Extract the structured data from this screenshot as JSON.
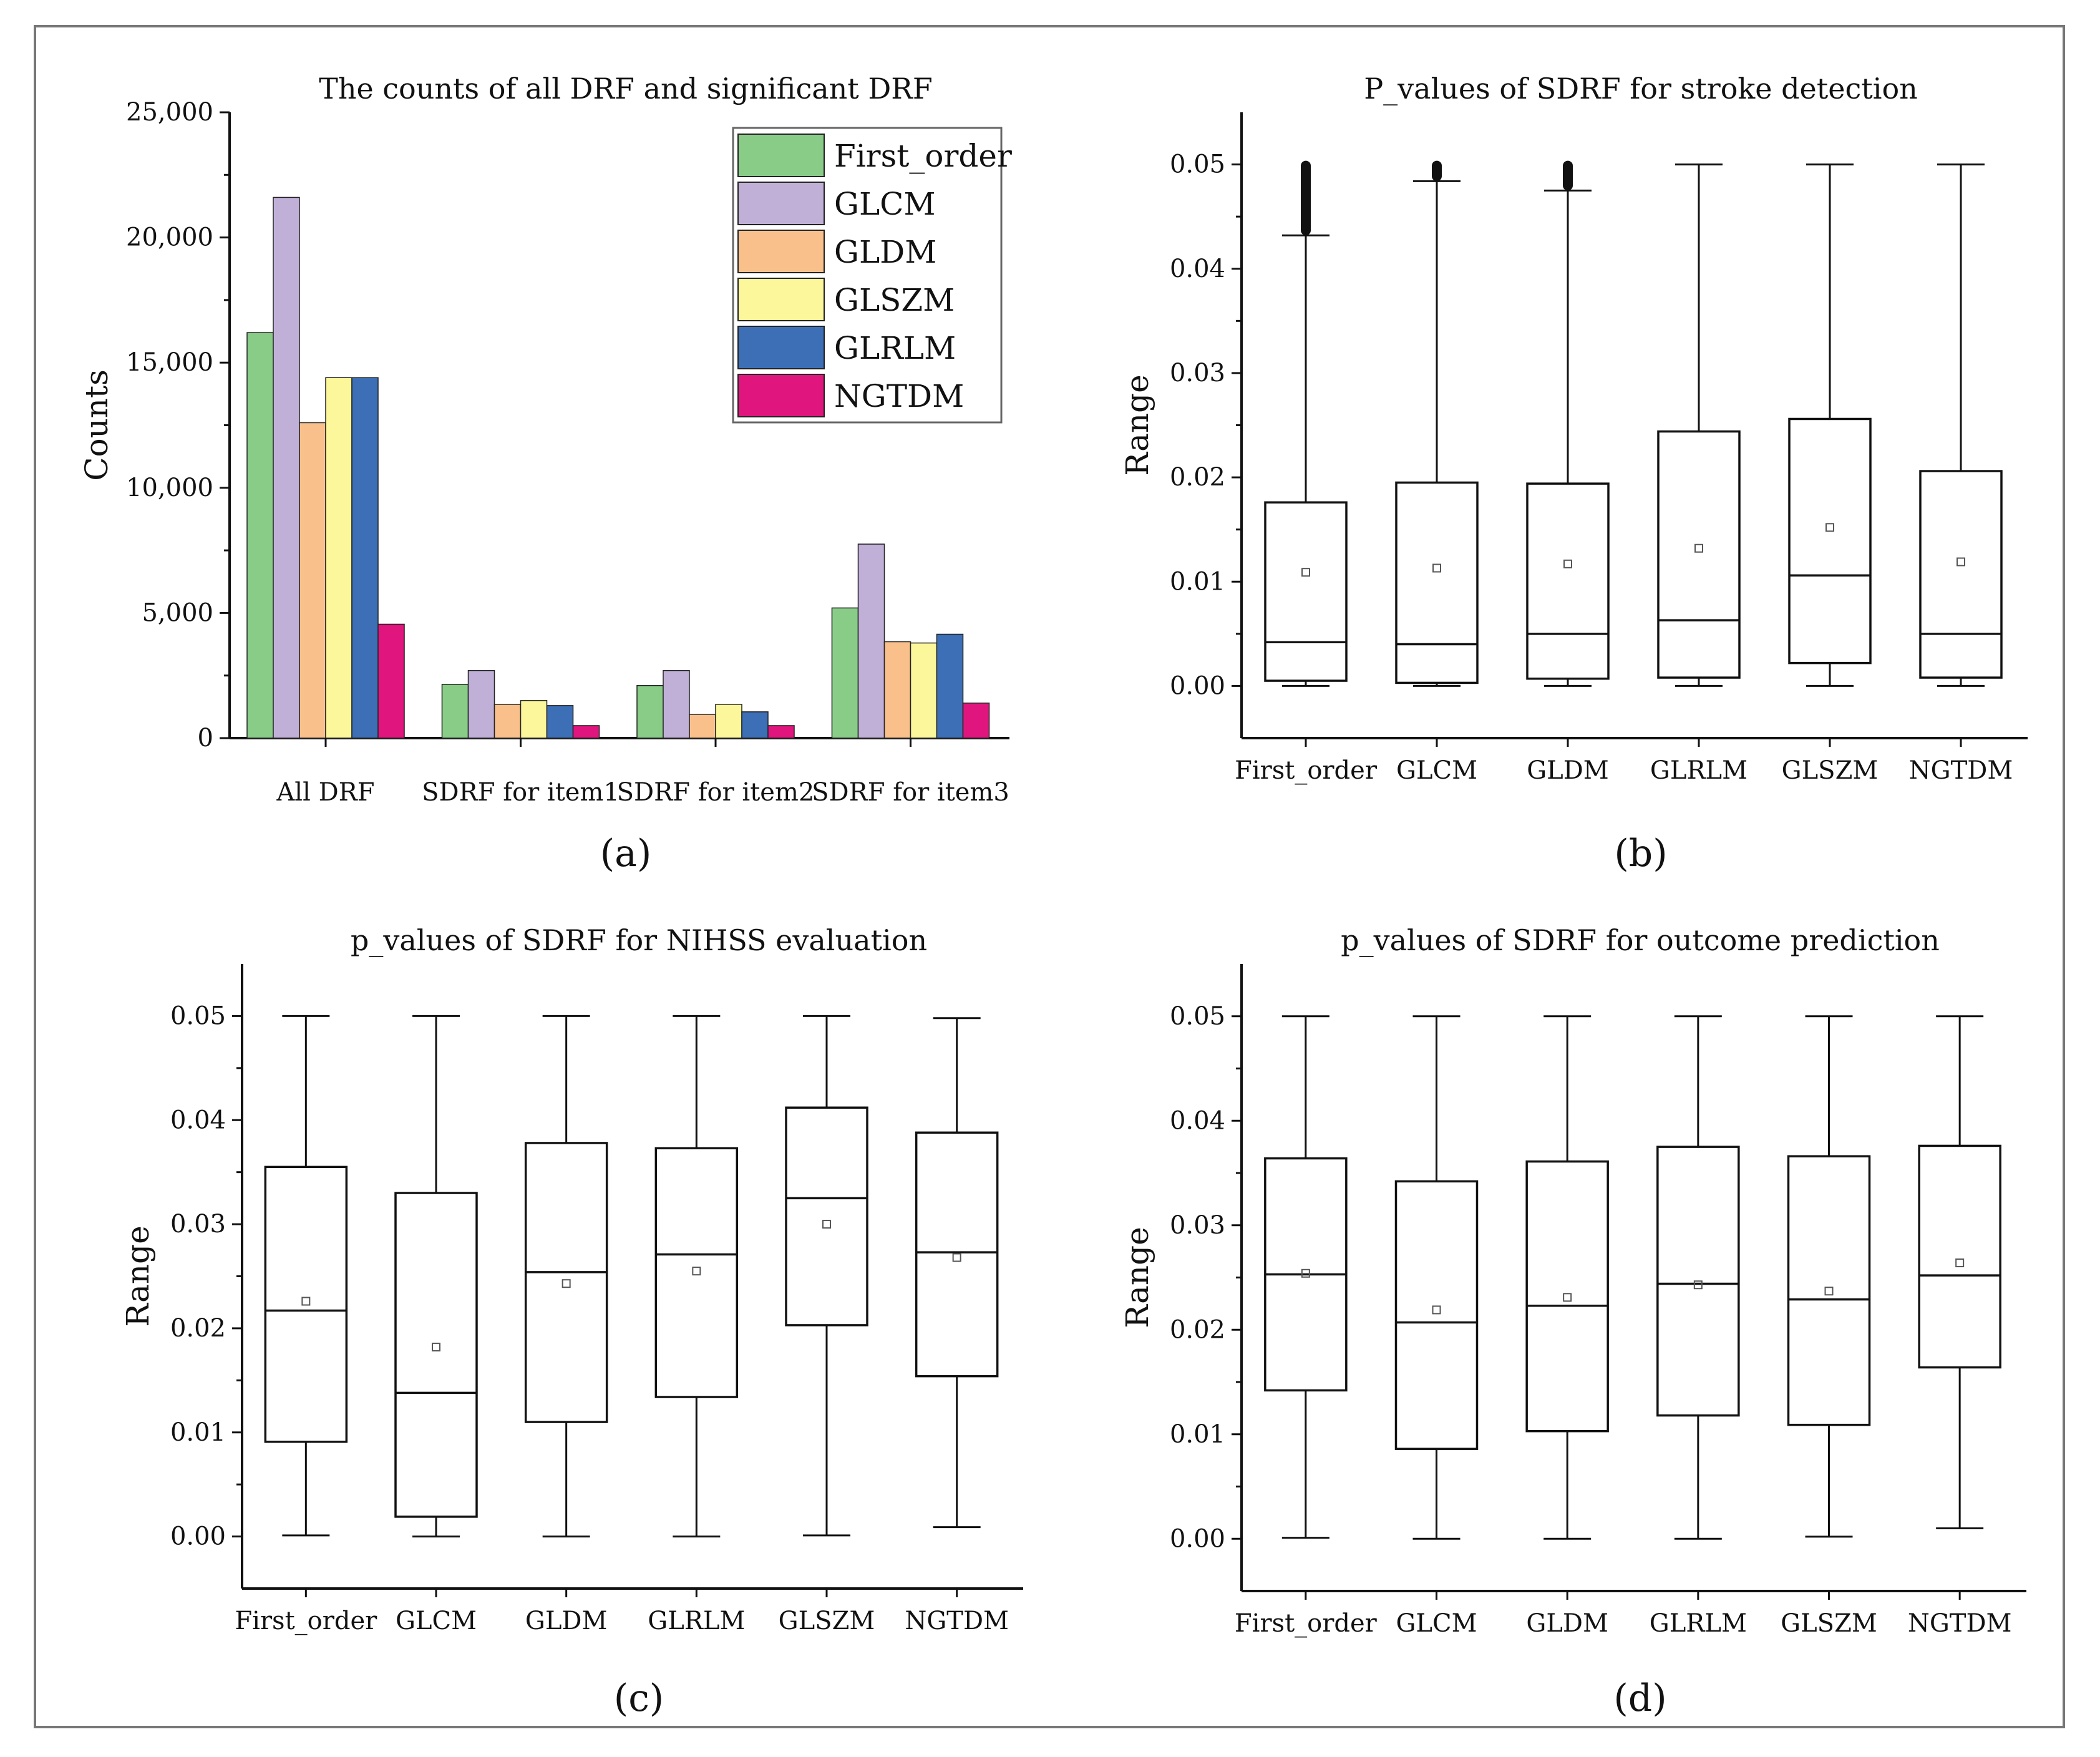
{
  "chart_data": [
    {
      "id": "a",
      "type": "bar",
      "panel_label": "(a)",
      "title": "The counts of all DRF and significant DRF",
      "xlabel": "",
      "ylabel": "Counts",
      "ylim": [
        0,
        25000
      ],
      "yticks": [
        0,
        5000,
        10000,
        15000,
        20000,
        25000
      ],
      "ytick_labels": [
        "0",
        "5,000",
        "10,000",
        "15,000",
        "20,000",
        "25,000"
      ],
      "categories": [
        "All DRF",
        "SDRF for item1",
        "SDRF for item2",
        "SDRF for item3"
      ],
      "legend_position": "top-right",
      "series": [
        {
          "name": "First_order",
          "color": "#88cc88",
          "values": [
            16200,
            2150,
            2100,
            5200
          ]
        },
        {
          "name": "GLCM",
          "color": "#c0b0d8",
          "values": [
            21600,
            2700,
            2700,
            7750
          ]
        },
        {
          "name": "GLDM",
          "color": "#f9c08c",
          "values": [
            12600,
            1350,
            950,
            3850
          ]
        },
        {
          "name": "GLSZM",
          "color": "#fbf79a",
          "values": [
            14400,
            1500,
            1350,
            3800
          ]
        },
        {
          "name": "GLRLM",
          "color": "#3d6fb6",
          "values": [
            14400,
            1300,
            1050,
            4150
          ]
        },
        {
          "name": "NGTDM",
          "color": "#e0157e",
          "values": [
            4550,
            500,
            500,
            1400
          ]
        }
      ]
    },
    {
      "id": "b",
      "type": "box",
      "panel_label": "(b)",
      "title": "P_values of SDRF for stroke detection",
      "xlabel": "",
      "ylabel": "Range",
      "ylim": [
        -0.005,
        0.055
      ],
      "yticks": [
        0,
        0.01,
        0.02,
        0.03,
        0.04,
        0.05
      ],
      "ytick_labels": [
        "0.00",
        "0.01",
        "0.02",
        "0.03",
        "0.04",
        "0.05"
      ],
      "categories": [
        "First_order",
        "GLCM",
        "GLDM",
        "GLRLM",
        "GLSZM",
        "NGTDM"
      ],
      "boxes": [
        {
          "min": 0.0,
          "q1": 0.0005,
          "median": 0.0042,
          "q3": 0.0176,
          "max": 0.0432,
          "mean": 0.0109,
          "outliers_range": [
            0.0432,
            0.05
          ]
        },
        {
          "min": 0.0,
          "q1": 0.0003,
          "median": 0.004,
          "q3": 0.0195,
          "max": 0.0484,
          "mean": 0.0113,
          "outliers_range": [
            0.0484,
            0.05
          ]
        },
        {
          "min": 0.0,
          "q1": 0.0007,
          "median": 0.005,
          "q3": 0.0194,
          "max": 0.0475,
          "mean": 0.0117,
          "outliers_range": [
            0.0475,
            0.05
          ]
        },
        {
          "min": 0.0,
          "q1": 0.0008,
          "median": 0.0063,
          "q3": 0.0244,
          "max": 0.05,
          "mean": 0.0132,
          "outliers_range": null
        },
        {
          "min": 0.0,
          "q1": 0.0022,
          "median": 0.0106,
          "q3": 0.0256,
          "max": 0.05,
          "mean": 0.0152,
          "outliers_range": null
        },
        {
          "min": 0.0,
          "q1": 0.0008,
          "median": 0.005,
          "q3": 0.0206,
          "max": 0.05,
          "mean": 0.0119,
          "outliers_range": null
        }
      ]
    },
    {
      "id": "c",
      "type": "box",
      "panel_label": "(c)",
      "title": "p_values of SDRF for NIHSS evaluation",
      "xlabel": "",
      "ylabel": "Range",
      "ylim": [
        -0.005,
        0.055
      ],
      "yticks": [
        0,
        0.01,
        0.02,
        0.03,
        0.04,
        0.05
      ],
      "ytick_labels": [
        "0.00",
        "0.01",
        "0.02",
        "0.03",
        "0.04",
        "0.05"
      ],
      "categories": [
        "First_order",
        "GLCM",
        "GLDM",
        "GLRLM",
        "GLSZM",
        "NGTDM"
      ],
      "boxes": [
        {
          "min": 0.0001,
          "q1": 0.0091,
          "median": 0.0217,
          "q3": 0.0355,
          "max": 0.05,
          "mean": 0.0226,
          "outliers_range": null
        },
        {
          "min": 0.0,
          "q1": 0.0019,
          "median": 0.0138,
          "q3": 0.033,
          "max": 0.05,
          "mean": 0.0182,
          "outliers_range": null
        },
        {
          "min": 0.0,
          "q1": 0.011,
          "median": 0.0254,
          "q3": 0.0378,
          "max": 0.05,
          "mean": 0.0243,
          "outliers_range": null
        },
        {
          "min": 0.0,
          "q1": 0.0134,
          "median": 0.0271,
          "q3": 0.0373,
          "max": 0.05,
          "mean": 0.0255,
          "outliers_range": null
        },
        {
          "min": 0.0001,
          "q1": 0.0203,
          "median": 0.0325,
          "q3": 0.0412,
          "max": 0.05,
          "mean": 0.03,
          "outliers_range": null
        },
        {
          "min": 0.0009,
          "q1": 0.0154,
          "median": 0.0273,
          "q3": 0.0388,
          "max": 0.0498,
          "mean": 0.0268,
          "outliers_range": null
        }
      ]
    },
    {
      "id": "d",
      "type": "box",
      "panel_label": "(d)",
      "title": "p_values of SDRF for outcome prediction",
      "xlabel": "",
      "ylabel": "Range",
      "ylim": [
        -0.005,
        0.055
      ],
      "yticks": [
        0,
        0.01,
        0.02,
        0.03,
        0.04,
        0.05
      ],
      "ytick_labels": [
        "0.00",
        "0.01",
        "0.02",
        "0.03",
        "0.04",
        "0.05"
      ],
      "categories": [
        "First_order",
        "GLCM",
        "GLDM",
        "GLRLM",
        "GLSZM",
        "NGTDM"
      ],
      "boxes": [
        {
          "min": 0.0001,
          "q1": 0.0142,
          "median": 0.0253,
          "q3": 0.0364,
          "max": 0.05,
          "mean": 0.0254,
          "outliers_range": null
        },
        {
          "min": 0.0,
          "q1": 0.0086,
          "median": 0.0207,
          "q3": 0.0342,
          "max": 0.05,
          "mean": 0.0219,
          "outliers_range": null
        },
        {
          "min": 0.0,
          "q1": 0.0103,
          "median": 0.0223,
          "q3": 0.0361,
          "max": 0.05,
          "mean": 0.0231,
          "outliers_range": null
        },
        {
          "min": 0.0,
          "q1": 0.0118,
          "median": 0.0244,
          "q3": 0.0375,
          "max": 0.05,
          "mean": 0.0243,
          "outliers_range": null
        },
        {
          "min": 0.0002,
          "q1": 0.0109,
          "median": 0.0229,
          "q3": 0.0366,
          "max": 0.05,
          "mean": 0.0237,
          "outliers_range": null
        },
        {
          "min": 0.001,
          "q1": 0.0164,
          "median": 0.0252,
          "q3": 0.0376,
          "max": 0.05,
          "mean": 0.0264,
          "outliers_range": null
        }
      ]
    }
  ]
}
